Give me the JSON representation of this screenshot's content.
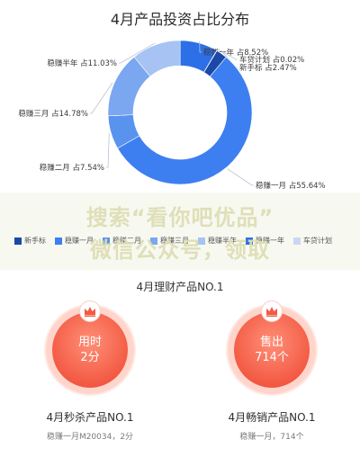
{
  "header": {
    "title": "4月产品投资占比分布"
  },
  "chart_data": {
    "type": "pie",
    "donut": true,
    "title": "4月产品投资占比分布",
    "slices": [
      {
        "label": "稳赚一年",
        "percent_text": "占8.52%",
        "value": 8.52,
        "color": "#2d6fe6"
      },
      {
        "label": "车贷计划",
        "percent_text": "占0.02%",
        "value": 0.02,
        "color": "#9fb9ea"
      },
      {
        "label": "新手标",
        "percent_text": "占2.47%",
        "value": 2.47,
        "color": "#1c48a8"
      },
      {
        "label": "稳赚一月",
        "percent_text": "占55.64%",
        "value": 55.64,
        "color": "#3d7ff0"
      },
      {
        "label": "稳赚二月",
        "percent_text": "占7.54%",
        "value": 7.54,
        "color": "#5a93ee"
      },
      {
        "label": "稳赚三月",
        "percent_text": "占14.78%",
        "value": 14.78,
        "color": "#7aa7f0"
      },
      {
        "label": "稳赚半年",
        "percent_text": "占11.03%",
        "value": 11.03,
        "color": "#a6c3f3"
      }
    ]
  },
  "watermark": {
    "line1": "搜索“看你吧优品”",
    "line2": "微信公众号，领取"
  },
  "legend": [
    {
      "label": "新手标",
      "color": "#1c48a8"
    },
    {
      "label": "稳赚一月",
      "color": "#3d7ff0"
    },
    {
      "label": "稳赚二月",
      "color": "#5a93ee"
    },
    {
      "label": "稳赚三月",
      "color": "#7aa7f0"
    },
    {
      "label": "稳赚半年",
      "color": "#a6c3f3"
    },
    {
      "label": "稳赚一年",
      "color": "#2d6fe6"
    },
    {
      "label": "车贷计划",
      "color": "#c9d7f3"
    }
  ],
  "section": {
    "title": "4月理财产品NO.1"
  },
  "cards": [
    {
      "circle_top": "用时",
      "circle_bottom": "2分",
      "title": "4月秒杀产品NO.1",
      "sub": "稳赚一月M20034，2分"
    },
    {
      "circle_top": "售出",
      "circle_bottom": "714个",
      "title": "4月畅销产品NO.1",
      "sub": "稳赚一月，714个"
    }
  ],
  "colors": {
    "accent_red": "#f35a44",
    "chart_blue": "#3d7ff0"
  }
}
